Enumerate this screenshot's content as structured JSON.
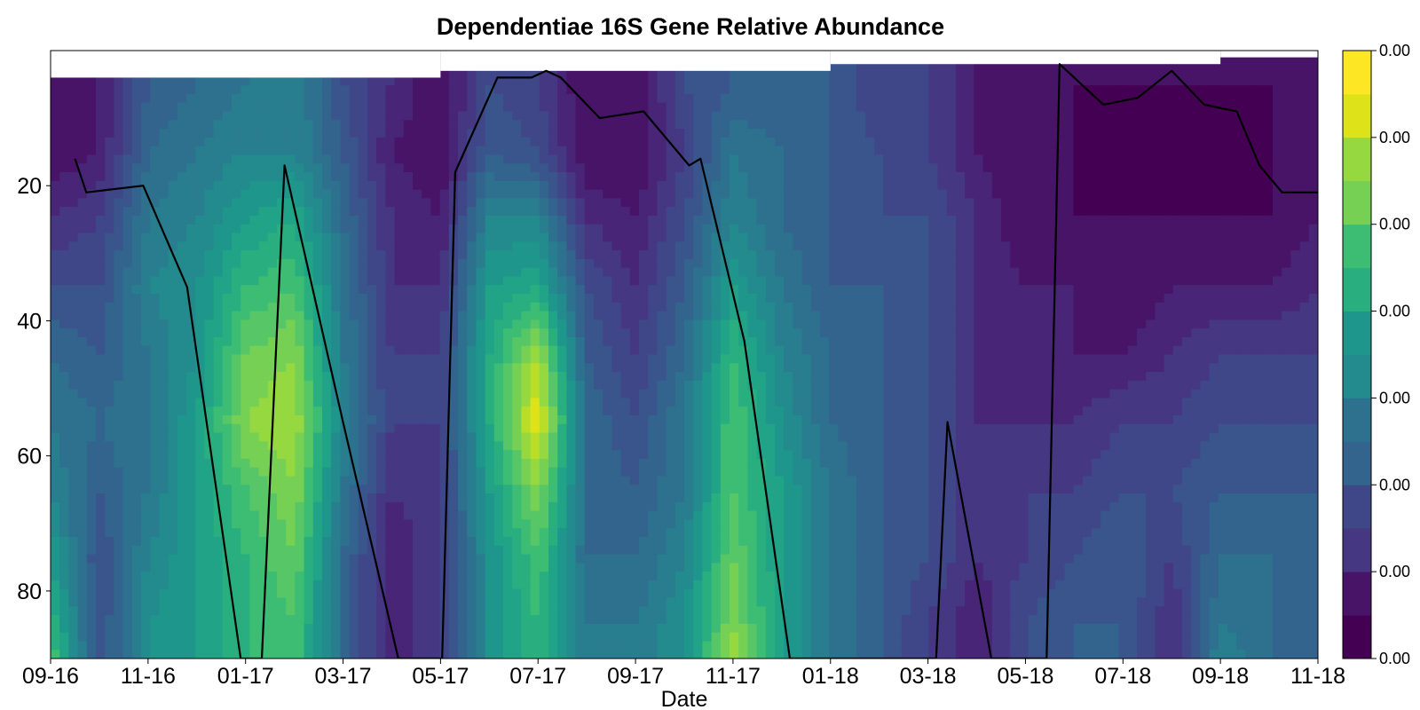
{
  "chart_data": {
    "type": "heatmap",
    "title": "Dependentiae 16S Gene Relative Abundance",
    "xlabel": "Date",
    "ylabel": "",
    "x_tick_labels": [
      "09-16",
      "11-16",
      "01-17",
      "03-17",
      "05-17",
      "07-17",
      "09-17",
      "11-17",
      "01-18",
      "03-18",
      "05-18",
      "07-18",
      "09-18",
      "11-18"
    ],
    "y_tick_labels": [
      "20",
      "40",
      "60",
      "80"
    ],
    "y_ticks": [
      20,
      40,
      60,
      80
    ],
    "ylim": [
      90,
      0
    ],
    "y_inverted": true,
    "grid": false,
    "colormap": "viridis",
    "colorbar_tick_labels": [
      "0.00",
      "0.00",
      "0.00",
      "0.00",
      "0.00",
      "0.00",
      "0.00",
      "0.00"
    ],
    "colorbar_levels": 14,
    "colors": [
      "#440154",
      "#481467",
      "#482576",
      "#453781",
      "#3f4788",
      "#39558c",
      "#32648e",
      "#2d718e",
      "#287d8e",
      "#238a8d",
      "#1f968b",
      "#20a386",
      "#29af7f",
      "#3dbc74",
      "#56c667",
      "#75d054",
      "#95d840",
      "#bade28",
      "#dde318",
      "#fde725"
    ],
    "sample_dates": [
      "09-16",
      "10-16",
      "11-16",
      "12-16",
      "01-17",
      "02-17",
      "03-17",
      "04-17",
      "05-17",
      "06-17",
      "07-17",
      "08-17",
      "09-17",
      "10-17",
      "11-17",
      "12-17",
      "01-18",
      "02-18",
      "03-18",
      "04-18",
      "05-18",
      "06-18",
      "07-18",
      "08-18",
      "09-18",
      "10-18",
      "11-18"
    ],
    "depths": [
      5,
      15,
      25,
      35,
      45,
      55,
      65,
      75,
      85,
      90
    ],
    "abundance_normalized": [
      [
        0.05,
        0.1,
        0.3,
        0.35,
        0.4,
        0.45,
        0.25,
        0.15,
        0.05,
        0.25,
        0.2,
        0.05,
        0.05,
        0.25,
        0.3,
        0.3,
        0.3,
        0.2,
        0.2,
        0.1,
        0.05,
        0.05,
        0.05,
        0.05,
        0.05,
        0.05,
        0.05
      ],
      [
        0.05,
        0.1,
        0.35,
        0.4,
        0.45,
        0.45,
        0.3,
        0.1,
        0.05,
        0.3,
        0.25,
        0.05,
        0.05,
        0.2,
        0.4,
        0.35,
        0.3,
        0.25,
        0.2,
        0.1,
        0.05,
        0.05,
        0.0,
        0.05,
        0.0,
        0.05,
        0.05
      ],
      [
        0.15,
        0.2,
        0.4,
        0.45,
        0.55,
        0.6,
        0.35,
        0.15,
        0.1,
        0.45,
        0.45,
        0.15,
        0.1,
        0.25,
        0.45,
        0.35,
        0.3,
        0.25,
        0.25,
        0.15,
        0.05,
        0.05,
        0.05,
        0.05,
        0.05,
        0.05,
        0.1
      ],
      [
        0.25,
        0.25,
        0.45,
        0.5,
        0.65,
        0.7,
        0.4,
        0.15,
        0.15,
        0.55,
        0.6,
        0.25,
        0.15,
        0.3,
        0.55,
        0.4,
        0.3,
        0.3,
        0.25,
        0.15,
        0.1,
        0.1,
        0.05,
        0.1,
        0.1,
        0.1,
        0.15
      ],
      [
        0.35,
        0.3,
        0.4,
        0.5,
        0.75,
        0.8,
        0.4,
        0.2,
        0.2,
        0.6,
        0.85,
        0.3,
        0.2,
        0.35,
        0.65,
        0.45,
        0.35,
        0.3,
        0.25,
        0.15,
        0.1,
        0.1,
        0.1,
        0.15,
        0.2,
        0.2,
        0.2
      ],
      [
        0.4,
        0.35,
        0.4,
        0.55,
        0.8,
        0.85,
        0.45,
        0.2,
        0.2,
        0.6,
        0.95,
        0.35,
        0.25,
        0.4,
        0.7,
        0.5,
        0.35,
        0.3,
        0.25,
        0.15,
        0.15,
        0.15,
        0.2,
        0.2,
        0.25,
        0.25,
        0.25
      ],
      [
        0.45,
        0.3,
        0.4,
        0.55,
        0.7,
        0.8,
        0.4,
        0.15,
        0.2,
        0.55,
        0.8,
        0.35,
        0.3,
        0.4,
        0.7,
        0.55,
        0.4,
        0.3,
        0.25,
        0.15,
        0.2,
        0.2,
        0.25,
        0.25,
        0.3,
        0.3,
        0.3
      ],
      [
        0.55,
        0.25,
        0.45,
        0.55,
        0.65,
        0.75,
        0.35,
        0.1,
        0.2,
        0.5,
        0.7,
        0.35,
        0.35,
        0.45,
        0.75,
        0.55,
        0.4,
        0.3,
        0.25,
        0.15,
        0.2,
        0.25,
        0.3,
        0.2,
        0.35,
        0.35,
        0.3
      ],
      [
        0.65,
        0.25,
        0.5,
        0.55,
        0.65,
        0.7,
        0.35,
        0.1,
        0.2,
        0.5,
        0.65,
        0.4,
        0.4,
        0.5,
        0.8,
        0.55,
        0.4,
        0.3,
        0.2,
        0.1,
        0.25,
        0.3,
        0.3,
        0.15,
        0.4,
        0.35,
        0.3
      ],
      [
        0.7,
        0.25,
        0.5,
        0.55,
        0.65,
        0.7,
        0.35,
        0.1,
        0.2,
        0.5,
        0.65,
        0.4,
        0.4,
        0.5,
        0.85,
        0.55,
        0.4,
        0.3,
        0.2,
        0.1,
        0.25,
        0.3,
        0.3,
        0.15,
        0.45,
        0.35,
        0.3
      ]
    ],
    "series": [
      {
        "type": "line",
        "x": [
          "09-16",
          "09-23",
          "10-28",
          "11-25",
          "12-28",
          "01-11",
          "01-25",
          "03-01",
          "04-05",
          "05-02",
          "05-10",
          "06-06",
          "06-27",
          "07-06",
          "07-15",
          "08-09",
          "09-06",
          "10-04",
          "10-11",
          "11-08",
          "12-06",
          "03-06",
          "03-13",
          "04-10",
          "04-17",
          "05-14",
          "05-22",
          "06-19",
          "07-10",
          "07-31",
          "08-21",
          "09-11",
          "09-25",
          "10-09",
          "11-06",
          "11-20"
        ],
        "y": [
          16,
          21,
          20,
          35,
          90,
          90,
          17,
          55,
          90,
          90,
          18,
          4,
          4,
          3,
          4,
          10,
          9,
          17,
          16,
          43,
          90,
          90,
          55,
          90,
          90,
          90,
          2,
          8,
          7,
          3,
          8,
          9,
          17,
          21,
          21,
          28
        ]
      }
    ]
  }
}
